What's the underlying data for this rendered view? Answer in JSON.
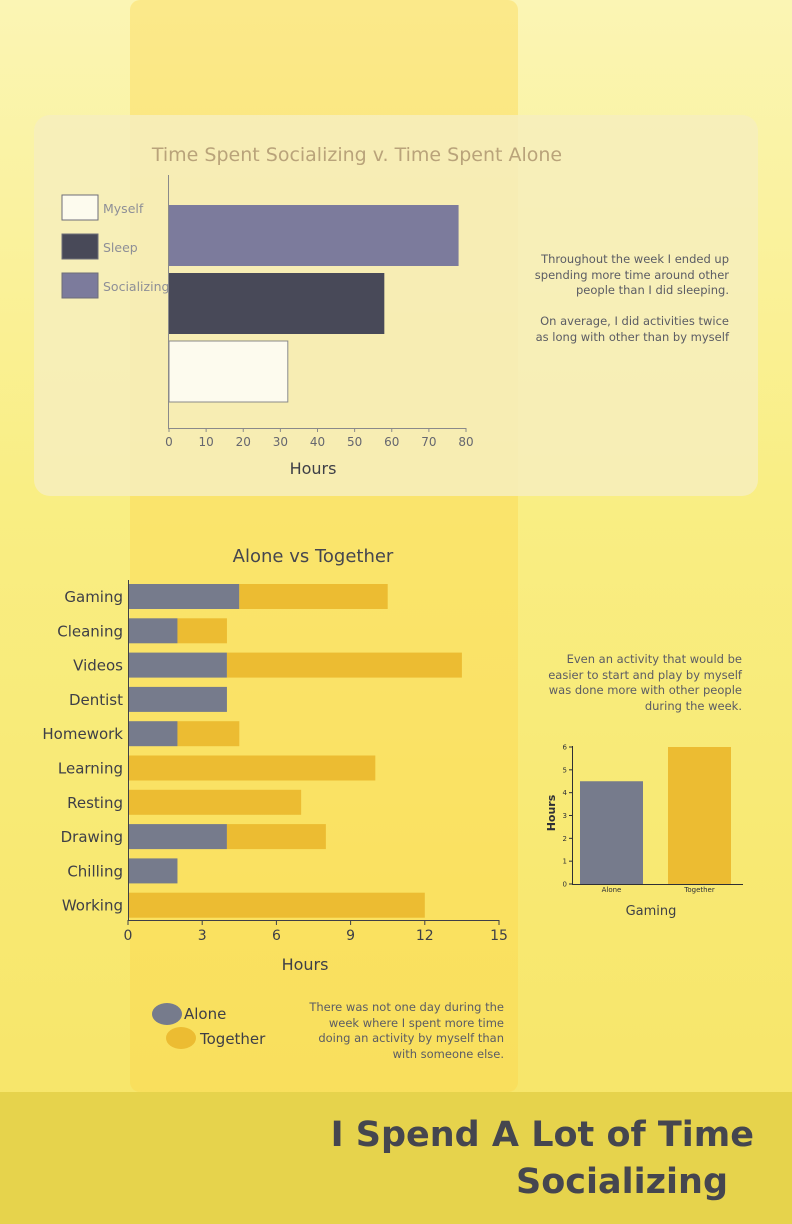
{
  "colors": {
    "myself": "#fdfbee",
    "sleep": "#484958",
    "socializing": "#7c7b9c",
    "alone": "#767b8c",
    "together": "#ecbc32",
    "text_dark": "#45464f",
    "title_tan": "#b9a37a"
  },
  "chart_data": [
    {
      "type": "bar",
      "orientation": "horizontal",
      "title": "Time Spent Socializing v. Time Spent Alone",
      "xlabel": "Hours",
      "ylabel": "",
      "xlim": [
        0,
        80
      ],
      "xticks": [
        0,
        10,
        20,
        30,
        40,
        50,
        60,
        70,
        80
      ],
      "legend_position": "left",
      "categories": [
        "Socializing",
        "Sleep",
        "Myself"
      ],
      "values": [
        78,
        58,
        32
      ],
      "legend": [
        "Myself",
        "Sleep",
        "Socializing"
      ],
      "colors": [
        "#7c7b9c",
        "#484958",
        "#fdfbee"
      ],
      "grid": false
    },
    {
      "type": "bar",
      "orientation": "horizontal",
      "stacked": true,
      "title": "Alone vs Together",
      "xlabel": "Hours",
      "ylabel": "",
      "xlim": [
        0,
        15
      ],
      "xticks": [
        0,
        3,
        6,
        9,
        12,
        15
      ],
      "legend_position": "bottom-left",
      "categories": [
        "Gaming",
        "Cleaning",
        "Videos",
        "Dentist",
        "Homework",
        "Learning",
        "Resting",
        "Drawing",
        "Chilling",
        "Working"
      ],
      "series": [
        {
          "name": "Alone",
          "values": [
            4.5,
            2,
            4,
            4,
            2,
            0,
            0,
            4,
            2,
            0
          ]
        },
        {
          "name": "Together",
          "values": [
            6,
            2,
            9.5,
            0,
            2.5,
            10,
            7,
            4,
            0,
            12
          ]
        }
      ],
      "grid": false
    },
    {
      "type": "bar",
      "title": "",
      "xlabel": "Gaming",
      "ylabel": "Hours",
      "ylim": [
        0,
        6
      ],
      "yticks": [
        0,
        1,
        2,
        3,
        4,
        5,
        6
      ],
      "categories": [
        "Alone",
        "Together"
      ],
      "values": [
        4.5,
        6
      ],
      "grid": false
    }
  ],
  "notes": {
    "top": [
      "Throughout the week I ended up",
      "spending more time around other",
      "people than I did sleeping.",
      "",
      "On average, I did activities twice",
      "as long with other than by myself"
    ],
    "middle": [
      "Even an activity that would be",
      "easier to start and play by myself",
      "was done more with other people",
      "during the week."
    ],
    "bottom": [
      "There was not one day during the",
      "week where I spent more time",
      "doing an activity by myself than",
      "with someone else."
    ]
  },
  "footer": {
    "line1": "I Spend A Lot of Time",
    "line2": "Socializing"
  }
}
